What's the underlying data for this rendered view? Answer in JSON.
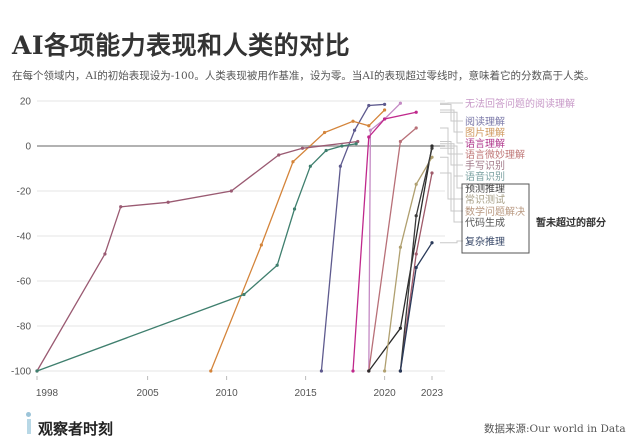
{
  "header": {
    "title": "AI各项能力表现和人类的对比",
    "subtitle": "在每个领域内，AI的初始表现设为-100。人类表现被用作基准，设为零。当AI的表现超过零线时，意味着它的分数高于人类。"
  },
  "chart_data": {
    "type": "line",
    "title": "AI各项能力表现和人类的对比",
    "xlabel": "",
    "ylabel": "",
    "xlim": [
      1998,
      2023
    ],
    "ylim": [
      -100,
      20
    ],
    "x_ticks": [
      "1998",
      "2005",
      "2010",
      "2015",
      "2020",
      "2023"
    ],
    "y_ticks": [
      "20",
      "0",
      "-20",
      "-40",
      "-60",
      "-80",
      "-100"
    ],
    "grid": true,
    "legend": "right, labels at line ends",
    "series": [
      {
        "name": "无法回答问题的阅读理解",
        "color": "#c48ac4",
        "x": [
          2019,
          2019.1,
          2020,
          2021
        ],
        "y": [
          -100,
          7,
          12,
          19
        ]
      },
      {
        "name": "阅读理解",
        "color": "#5e5a8e",
        "x": [
          2016,
          2017.2,
          2018.1,
          2019,
          2020
        ],
        "y": [
          -100,
          -9,
          7,
          18,
          18.5
        ]
      },
      {
        "name": "图片理解",
        "color": "#d4843a",
        "x": [
          2009,
          2012.2,
          2014.2,
          2016.2,
          2018,
          2019,
          2020
        ],
        "y": [
          -100,
          -44,
          -7,
          6,
          11,
          9,
          16
        ]
      },
      {
        "name": "语言理解",
        "color": "#c0288c",
        "x": [
          2018,
          2019,
          2020,
          2022
        ],
        "y": [
          -100,
          4,
          12,
          15
        ]
      },
      {
        "name": "语言微妙理解",
        "color": "#b87078",
        "x": [
          2019,
          2021,
          2022
        ],
        "y": [
          -100,
          2,
          8
        ]
      },
      {
        "name": "手写识别",
        "color": "#9a5a72",
        "x": [
          1998,
          2002.3,
          2003.3,
          2006.3,
          2010.3,
          2013.3,
          2014.8,
          2018.3
        ],
        "y": [
          -100,
          -48,
          -27,
          -25,
          -20,
          -4,
          -1,
          2
        ]
      },
      {
        "name": "语音识别",
        "color": "#3f7f6e",
        "x": [
          1998,
          2011.1,
          2013.2,
          2014.3,
          2015.3,
          2016.3,
          2017.3,
          2018.2
        ],
        "y": [
          -100,
          -66,
          -53,
          -28,
          -9,
          -2,
          0,
          1
        ]
      },
      {
        "name": "预测推理",
        "color": "#2b2b2b",
        "x": [
          2019,
          2021,
          2023
        ],
        "y": [
          -100,
          -81,
          0
        ]
      },
      {
        "name": "常识测试",
        "color": "#b0a070",
        "x": [
          2020,
          2021,
          2022,
          2023
        ],
        "y": [
          -100,
          -45,
          -17,
          -5
        ]
      },
      {
        "name": "数学问题解决",
        "color": "#a05a6a",
        "x": [
          2021,
          2022,
          2023
        ],
        "y": [
          -100,
          -48,
          -12
        ]
      },
      {
        "name": "代码生成",
        "color": "#3a3a3a",
        "x": [
          2021,
          2022,
          2023
        ],
        "y": [
          -100,
          -31,
          -1
        ]
      },
      {
        "name": "复杂推理",
        "color": "#2a3a5a",
        "x": [
          2021,
          2022,
          2023
        ],
        "y": [
          -100,
          -54,
          -43
        ]
      }
    ],
    "label_colors": [
      "#c89ac8",
      "#7a78a8",
      "#d09a60",
      "#b0388c",
      "#c07878",
      "#a07888",
      "#7aa0a0",
      "#444444",
      "#a8a088",
      "#b89880",
      "#555555",
      "#3a4a6a"
    ],
    "group_annotation": "暂未超过的部分"
  },
  "footer": {
    "brand": "观察者时刻",
    "source": "数据来源:Our world in Data"
  }
}
